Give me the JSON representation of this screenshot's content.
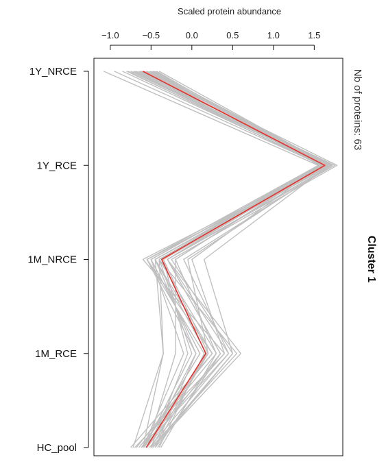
{
  "chart_data": {
    "type": "line",
    "title": "",
    "xlabel": "Scaled protein abundance",
    "ylabel": "",
    "categories": [
      "1Y_NRCE",
      "1Y_RCE",
      "1M_NRCE",
      "1M_RCE",
      "HC_pool"
    ],
    "xticks": [
      -1.0,
      -0.5,
      0.0,
      0.5,
      1.0,
      1.5
    ],
    "xtick_labels": [
      "−1.0",
      "−0.5",
      "0.0",
      "0.5",
      "1.0",
      "1.5"
    ],
    "xlim": [
      -1.2,
      1.85
    ],
    "grid": false,
    "colors": {
      "members": "#c0c0c0",
      "centroid": "#e8302a"
    },
    "series": [
      {
        "role": "centroid",
        "values": [
          -0.6,
          1.63,
          -0.37,
          0.17,
          -0.56
        ]
      },
      {
        "role": "member",
        "values": [
          -1.08,
          1.55,
          -0.55,
          0.25,
          -0.75
        ]
      },
      {
        "role": "member",
        "values": [
          -0.95,
          1.6,
          -0.45,
          0.18,
          -0.45
        ]
      },
      {
        "role": "member",
        "values": [
          -0.85,
          1.62,
          -0.3,
          0.35,
          -0.55
        ]
      },
      {
        "role": "member",
        "values": [
          -0.8,
          1.65,
          -0.6,
          0.4,
          -0.7
        ]
      },
      {
        "role": "member",
        "values": [
          -0.78,
          1.58,
          -0.5,
          0.1,
          -0.6
        ]
      },
      {
        "role": "member",
        "values": [
          -0.75,
          1.7,
          -0.4,
          0.55,
          -0.5
        ]
      },
      {
        "role": "member",
        "values": [
          -0.72,
          1.66,
          -0.35,
          0.2,
          -0.62
        ]
      },
      {
        "role": "member",
        "values": [
          -0.7,
          1.62,
          -0.45,
          0.05,
          -0.55
        ]
      },
      {
        "role": "member",
        "values": [
          -0.68,
          1.75,
          -0.3,
          0.6,
          -0.48
        ]
      },
      {
        "role": "member",
        "values": [
          -0.65,
          1.6,
          -0.2,
          0.3,
          -0.65
        ]
      },
      {
        "role": "member",
        "values": [
          -0.63,
          1.68,
          -0.55,
          0.15,
          -0.4
        ]
      },
      {
        "role": "member",
        "values": [
          -0.6,
          1.64,
          -0.4,
          0.0,
          -0.58
        ]
      },
      {
        "role": "member",
        "values": [
          -0.58,
          1.72,
          -0.1,
          0.45,
          -0.52
        ]
      },
      {
        "role": "member",
        "values": [
          -0.56,
          1.58,
          -0.5,
          -0.1,
          -0.6
        ]
      },
      {
        "role": "member",
        "values": [
          -0.55,
          1.78,
          -0.25,
          0.5,
          -0.45
        ]
      },
      {
        "role": "member",
        "values": [
          -0.52,
          1.62,
          -0.45,
          0.25,
          -0.68
        ]
      },
      {
        "role": "member",
        "values": [
          -0.5,
          1.66,
          -0.35,
          -0.05,
          -0.5
        ]
      },
      {
        "role": "member",
        "values": [
          -0.48,
          1.6,
          -0.3,
          0.35,
          -0.42
        ]
      },
      {
        "role": "member",
        "values": [
          -0.47,
          1.7,
          -0.05,
          0.2,
          -0.55
        ]
      },
      {
        "role": "member",
        "values": [
          -0.45,
          1.64,
          -0.4,
          0.3,
          -0.38
        ]
      },
      {
        "role": "member",
        "values": [
          -0.43,
          1.56,
          -0.5,
          0.1,
          -0.6
        ]
      },
      {
        "role": "member",
        "values": [
          -0.4,
          1.68,
          0.15,
          0.5,
          -0.48
        ]
      },
      {
        "role": "member",
        "values": [
          -0.6,
          1.62,
          -0.2,
          -0.2,
          -0.55
        ]
      },
      {
        "role": "member",
        "values": [
          -0.7,
          1.66,
          -0.45,
          -0.35,
          -0.6
        ]
      },
      {
        "role": "member",
        "values": [
          -0.65,
          1.6,
          -0.4,
          -0.35,
          -0.72
        ]
      },
      {
        "role": "member",
        "values": [
          -0.55,
          1.72,
          -0.3,
          0.45,
          -0.6
        ]
      },
      {
        "role": "member",
        "values": [
          -0.75,
          1.64,
          -0.35,
          0.2,
          -0.5
        ]
      },
      {
        "role": "member",
        "values": [
          -0.5,
          1.58,
          0.0,
          0.4,
          -0.62
        ]
      },
      {
        "role": "member",
        "values": [
          -0.62,
          1.7,
          -0.55,
          0.05,
          -0.45
        ]
      }
    ]
  },
  "side_panel": {
    "count_label": "Nb of proteins: 63",
    "cluster_label": "Cluster 1"
  }
}
